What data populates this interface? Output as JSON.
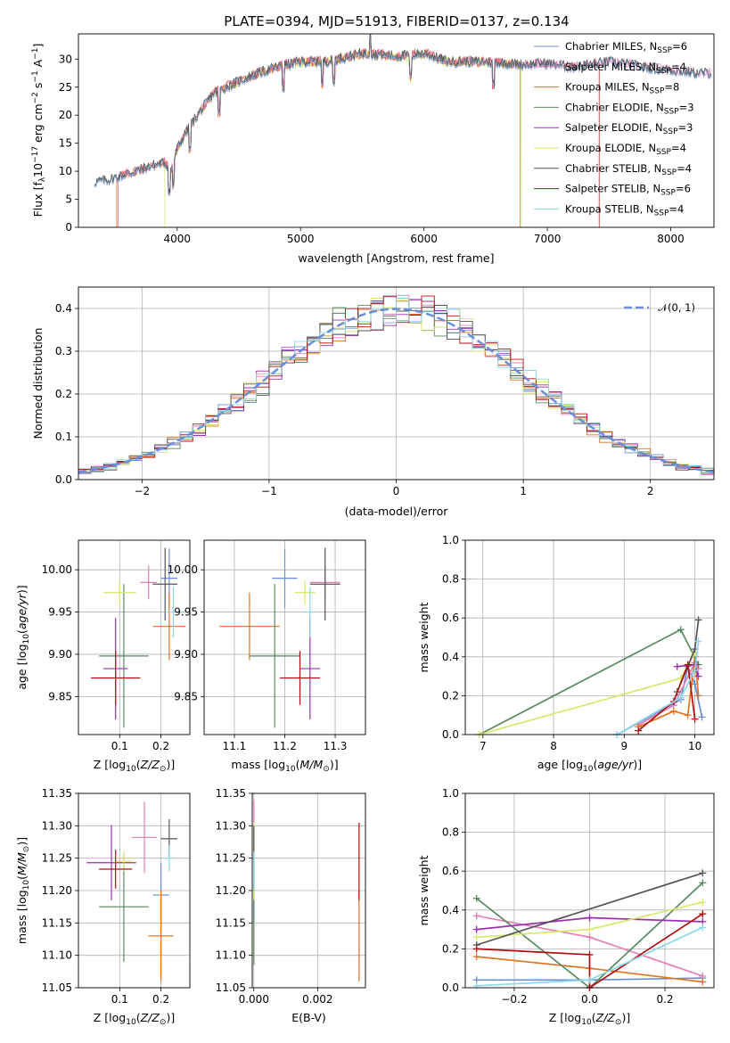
{
  "figure": {
    "title": "PLATE=0394, MJD=51913, FIBERID=0137, z=0.134"
  },
  "colors": {
    "Chabrier MILES": "#6a8fd8",
    "Salpeter MILES": "#e67fb5",
    "Kroupa MILES": "#e37222",
    "Chabrier ELODIE": "#5a8a60",
    "Salpeter ELODIE": "#9b30b0",
    "Kroupa ELODIE": "#d9e86a",
    "Chabrier STELIB": "#555555",
    "Salpeter STELIB": "#b01010",
    "Kroupa STELIB": "#8ad8e8",
    "gauss": "#6a8fd8"
  },
  "chart_data": [
    {
      "id": "spectrum",
      "type": "line",
      "title": "PLATE=0394, MJD=51913, FIBERID=0137, z=0.134",
      "xlabel": "wavelength [Angstrom, rest frame]",
      "ylabel": "Flux [fλ10⁻¹⁷ erg cm⁻² s⁻¹ A⁻¹]",
      "xlim": [
        3200,
        8350
      ],
      "ylim": [
        0,
        34.5
      ],
      "xticks": [
        4000,
        5000,
        6000,
        7000,
        8000
      ],
      "yticks": [
        0,
        5,
        10,
        15,
        20,
        25,
        30
      ],
      "grid": false,
      "legend": "top-right",
      "legend_entries": [
        {
          "name": "Chabrier MILES",
          "nssp": "6"
        },
        {
          "name": "Salpeter MILES",
          "nssp": "4"
        },
        {
          "name": "Kroupa MILES",
          "nssp": "8"
        },
        {
          "name": "Chabrier ELODIE",
          "nssp": "3"
        },
        {
          "name": "Salpeter ELODIE",
          "nssp": "3"
        },
        {
          "name": "Kroupa ELODIE",
          "nssp": "4"
        },
        {
          "name": "Chabrier STELIB",
          "nssp": "4"
        },
        {
          "name": "Salpeter STELIB",
          "nssp": "6"
        },
        {
          "name": "Kroupa STELIB",
          "nssp": "4"
        }
      ],
      "continuum": {
        "x": [
          3330,
          3450,
          3600,
          3800,
          3900,
          3950,
          4000,
          4100,
          4200,
          4300,
          4400,
          4600,
          4800,
          5000,
          5200,
          5500,
          5800,
          6000,
          6200,
          6500,
          6800,
          7000,
          7200,
          7500,
          7800,
          8000,
          8200,
          8300
        ],
        "y": [
          8,
          8.5,
          9.5,
          11,
          11.5,
          10,
          14,
          18,
          21,
          24,
          25,
          27,
          28.5,
          29.5,
          29.5,
          31,
          30.5,
          31,
          29.5,
          29.5,
          29,
          29.2,
          28.5,
          29.5,
          28.5,
          28,
          27.5,
          27.5
        ]
      }
    },
    {
      "id": "residuals",
      "type": "bar",
      "xlabel": "(data-model)/error",
      "ylabel": "Normed distribution",
      "xlim": [
        -2.5,
        2.5
      ],
      "ylim": [
        0,
        0.45
      ],
      "xticks": [
        -2,
        -1,
        0,
        1,
        2
      ],
      "yticks": [
        0.0,
        0.1,
        0.2,
        0.3,
        0.4
      ],
      "grid": true,
      "legend": "top-right",
      "legend_label": "𝒩(0, 1)",
      "bin_width": 0.1
    },
    {
      "id": "age-vs-Z",
      "type": "scatter",
      "xlabel": "Z [log10(Z/Z☉)]",
      "ylabel": "age  [log10(age/yr)]",
      "xlim": [
        0.0,
        0.27
      ],
      "ylim": [
        9.805,
        10.035
      ],
      "xticks": [
        0.1,
        0.2
      ],
      "yticks": [
        9.85,
        9.9,
        9.95,
        10.0
      ],
      "grid": true,
      "points": [
        {
          "series": "Chabrier MILES",
          "x": 0.22,
          "y": 9.99,
          "xerr": 0.02,
          "yerr": 0.035
        },
        {
          "series": "Salpeter MILES",
          "x": 0.17,
          "y": 9.985,
          "xerr": 0.02,
          "yerr": 0.02
        },
        {
          "series": "Kroupa MILES",
          "x": 0.22,
          "y": 9.933,
          "xerr": 0.04,
          "yerr": 0.04
        },
        {
          "series": "Chabrier ELODIE",
          "x": 0.11,
          "y": 9.898,
          "xerr": 0.06,
          "yerr": 0.085
        },
        {
          "series": "Salpeter ELODIE",
          "x": 0.09,
          "y": 9.883,
          "xerr": 0.03,
          "yerr": 0.06
        },
        {
          "series": "Kroupa ELODIE",
          "x": 0.1,
          "y": 9.973,
          "xerr": 0.04,
          "yerr": 0.015
        },
        {
          "series": "Chabrier STELIB",
          "x": 0.21,
          "y": 9.983,
          "xerr": 0.03,
          "yerr": 0.043
        },
        {
          "series": "Salpeter STELIB",
          "x": 0.09,
          "y": 9.872,
          "xerr": 0.06,
          "yerr": 0.032
        },
        {
          "series": "Kroupa STELIB",
          "x": 0.23,
          "y": 9.95,
          "xerr": 0.02,
          "yerr": 0.03
        }
      ]
    },
    {
      "id": "age-vs-mass",
      "type": "scatter",
      "xlabel": "mass [log10(M/M☉)]",
      "xlim": [
        11.04,
        11.36
      ],
      "ylim": [
        9.805,
        10.035
      ],
      "xticks": [
        11.1,
        11.2,
        11.3
      ],
      "yticks": [
        9.85,
        9.9,
        9.95,
        10.0
      ],
      "grid": true,
      "points": [
        {
          "series": "Chabrier MILES",
          "x": 11.2,
          "y": 9.99,
          "xerr": 0.025,
          "yerr": 0.035
        },
        {
          "series": "Salpeter MILES",
          "x": 11.28,
          "y": 9.985,
          "xerr": 0.03,
          "yerr": 0.02
        },
        {
          "series": "Kroupa MILES",
          "x": 11.13,
          "y": 9.933,
          "xerr": 0.06,
          "yerr": 0.04
        },
        {
          "series": "Chabrier ELODIE",
          "x": 11.18,
          "y": 9.898,
          "xerr": 0.05,
          "yerr": 0.085
        },
        {
          "series": "Salpeter ELODIE",
          "x": 11.25,
          "y": 9.883,
          "xerr": 0.02,
          "yerr": 0.06
        },
        {
          "series": "Kroupa ELODIE",
          "x": 11.24,
          "y": 9.973,
          "xerr": 0.02,
          "yerr": 0.015
        },
        {
          "series": "Chabrier STELIB",
          "x": 11.28,
          "y": 9.983,
          "xerr": 0.03,
          "yerr": 0.043
        },
        {
          "series": "Salpeter STELIB",
          "x": 11.23,
          "y": 9.872,
          "xerr": 0.04,
          "yerr": 0.032
        },
        {
          "series": "Kroupa STELIB",
          "x": 11.25,
          "y": 9.95,
          "xerr": 0.01,
          "yerr": 0.03
        }
      ]
    },
    {
      "id": "massweight-vs-age",
      "type": "line",
      "xlabel": "age  [log10(age/yr)]",
      "ylabel": "mass weight",
      "xlim": [
        6.75,
        10.27
      ],
      "ylim": [
        0,
        1.0
      ],
      "xticks": [
        7,
        8,
        9,
        10
      ],
      "yticks": [
        0.0,
        0.2,
        0.4,
        0.6,
        0.8,
        1.0
      ],
      "grid": true,
      "series": [
        {
          "name": "Chabrier MILES",
          "x": [
            8.9,
            9.8,
            9.9,
            10.0,
            10.1
          ],
          "y": [
            0.0,
            0.18,
            0.35,
            0.26,
            0.09
          ]
        },
        {
          "name": "Salpeter MILES",
          "x": [
            9.2,
            9.7,
            10.0,
            10.05
          ],
          "y": [
            0.05,
            0.15,
            0.37,
            0.34
          ]
        },
        {
          "name": "Kroupa MILES",
          "x": [
            9.2,
            9.7,
            9.9,
            10.0,
            10.05
          ],
          "y": [
            0.04,
            0.12,
            0.1,
            0.4,
            0.2
          ]
        },
        {
          "name": "Chabrier ELODIE",
          "x": [
            6.95,
            9.8,
            10.05
          ],
          "y": [
            0.0,
            0.54,
            0.36
          ]
        },
        {
          "name": "Salpeter ELODIE",
          "x": [
            9.75,
            10.0,
            10.05
          ],
          "y": [
            0.35,
            0.36,
            0.3
          ]
        },
        {
          "name": "Kroupa ELODIE",
          "x": [
            6.95,
            9.8,
            10.0
          ],
          "y": [
            0.0,
            0.29,
            0.42
          ]
        },
        {
          "name": "Chabrier STELIB",
          "x": [
            9.75,
            10.0,
            10.05
          ],
          "y": [
            0.22,
            0.44,
            0.59
          ]
        },
        {
          "name": "Salpeter STELIB",
          "x": [
            9.2,
            9.7,
            9.9,
            10.0
          ],
          "y": [
            0.02,
            0.17,
            0.36,
            0.08
          ]
        },
        {
          "name": "Kroupa STELIB",
          "x": [
            8.9,
            9.8,
            10.0,
            10.05
          ],
          "y": [
            0.0,
            0.19,
            0.33,
            0.48
          ]
        }
      ]
    },
    {
      "id": "mass-vs-Z",
      "type": "scatter",
      "xlabel": "Z [log10(Z/Z☉)]",
      "ylabel": "mass [log10(M/M☉)]",
      "xlim": [
        0.0,
        0.27
      ],
      "ylim": [
        11.05,
        11.35
      ],
      "xticks": [
        0.1,
        0.2
      ],
      "yticks": [
        11.05,
        11.1,
        11.15,
        11.2,
        11.25,
        11.3,
        11.35
      ],
      "grid": true,
      "points": [
        {
          "series": "Chabrier MILES",
          "x": 0.2,
          "y": 11.193,
          "xerr": 0.02,
          "yerr": 0.05
        },
        {
          "series": "Salpeter MILES",
          "x": 0.16,
          "y": 11.282,
          "xerr": 0.03,
          "yerr": 0.055
        },
        {
          "series": "Kroupa MILES",
          "x": 0.2,
          "y": 11.13,
          "xerr": 0.03,
          "yerr": 0.07
        },
        {
          "series": "Chabrier ELODIE",
          "x": 0.11,
          "y": 11.175,
          "xerr": 0.06,
          "yerr": 0.085
        },
        {
          "series": "Salpeter ELODIE",
          "x": 0.08,
          "y": 11.243,
          "xerr": 0.06,
          "yerr": 0.058
        },
        {
          "series": "Kroupa ELODIE",
          "x": 0.11,
          "y": 11.245,
          "xerr": 0.02,
          "yerr": 0.015
        },
        {
          "series": "Chabrier STELIB",
          "x": 0.22,
          "y": 11.28,
          "xerr": 0.02,
          "yerr": 0.03
        },
        {
          "series": "Salpeter STELIB",
          "x": 0.09,
          "y": 11.233,
          "xerr": 0.04,
          "yerr": 0.03
        },
        {
          "series": "Kroupa STELIB",
          "x": 0.22,
          "y": 11.25,
          "xerr": 0.01,
          "yerr": 0.02
        }
      ]
    },
    {
      "id": "mass-vs-EBV",
      "type": "scatter",
      "xlabel": "E(B-V)",
      "xlim": [
        -5e-05,
        0.0035
      ],
      "ylim": [
        11.05,
        11.35
      ],
      "xticks": [
        0.0,
        0.002
      ],
      "yticks": [
        11.05,
        11.1,
        11.15,
        11.2,
        11.25,
        11.3,
        11.35
      ],
      "grid": true,
      "points": [
        {
          "series": "Chabrier MILES",
          "x": 0.0,
          "y": 11.2,
          "yerr": 0.05
        },
        {
          "series": "Salpeter MILES",
          "x": 0.0,
          "y": 11.29,
          "yerr": 0.05
        },
        {
          "series": "Kroupa MILES",
          "x": 0.0033,
          "y": 11.13,
          "yerr": 0.07
        },
        {
          "series": "Chabrier ELODIE",
          "x": 0.0,
          "y": 11.17,
          "yerr": 0.085
        },
        {
          "series": "Kroupa ELODIE",
          "x": 0.0,
          "y": 11.245,
          "yerr": 0.06
        },
        {
          "series": "Chabrier STELIB",
          "x": 0.0,
          "y": 11.25,
          "yerr": 0.05
        },
        {
          "series": "Salpeter STELIB",
          "x": 0.0033,
          "y": 11.245,
          "yerr": 0.06
        },
        {
          "series": "Kroupa STELIB",
          "x": 0.0,
          "y": 11.23,
          "yerr": 0.03
        }
      ]
    },
    {
      "id": "massweight-vs-Z",
      "type": "line",
      "xlabel": "Z [log10(Z/Z☉)]",
      "ylabel": "mass weight",
      "xlim": [
        -0.33,
        0.33
      ],
      "ylim": [
        0,
        1.0
      ],
      "xticks": [
        -0.2,
        0.0,
        0.2
      ],
      "yticks": [
        0.0,
        0.2,
        0.4,
        0.6,
        0.8,
        1.0
      ],
      "grid": true,
      "series": [
        {
          "name": "Chabrier MILES",
          "x": [
            -0.3,
            0.0,
            0.3
          ],
          "y": [
            0.04,
            0.04,
            0.05
          ]
        },
        {
          "name": "Salpeter MILES",
          "x": [
            -0.3,
            0.0,
            0.3
          ],
          "y": [
            0.37,
            0.26,
            0.06
          ]
        },
        {
          "name": "Kroupa MILES",
          "x": [
            -0.3,
            0.0,
            0.3
          ],
          "y": [
            0.16,
            0.1,
            0.03
          ]
        },
        {
          "name": "Chabrier ELODIE",
          "x": [
            -0.3,
            0.0,
            0.3
          ],
          "y": [
            0.46,
            0.0,
            0.54
          ]
        },
        {
          "name": "Salpeter ELODIE",
          "x": [
            -0.3,
            0.0,
            0.3
          ],
          "y": [
            0.3,
            0.36,
            0.34
          ]
        },
        {
          "name": "Kroupa ELODIE",
          "x": [
            -0.3,
            0.0,
            0.3
          ],
          "y": [
            0.26,
            0.3,
            0.44
          ]
        },
        {
          "name": "Chabrier STELIB",
          "x": [
            -0.3,
            0.3
          ],
          "y": [
            0.22,
            0.59
          ]
        },
        {
          "name": "Salpeter STELIB",
          "x": [
            -0.3,
            0.0,
            0.0,
            0.3
          ],
          "y": [
            0.2,
            0.17,
            0.0,
            0.38
          ]
        },
        {
          "name": "Kroupa STELIB",
          "x": [
            -0.3,
            0.0,
            0.3
          ],
          "y": [
            0.01,
            0.04,
            0.31
          ]
        }
      ]
    }
  ]
}
